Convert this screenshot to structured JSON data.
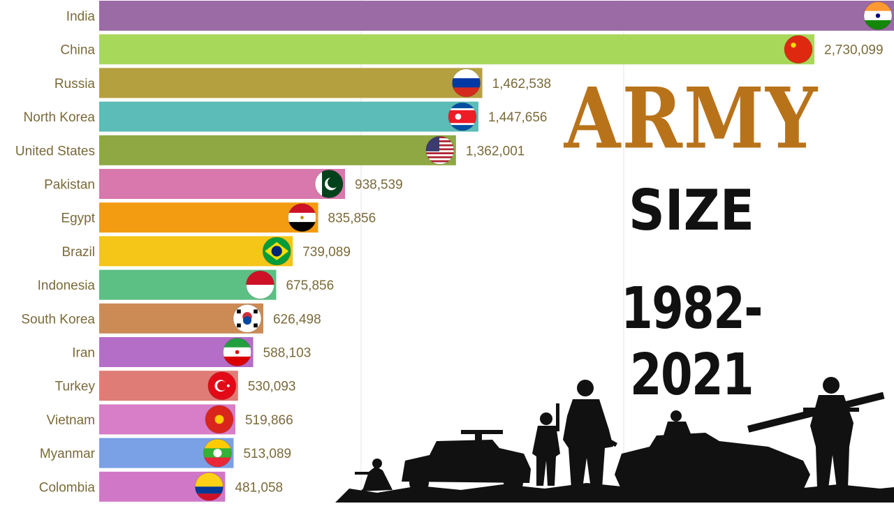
{
  "title": {
    "army": "ARMY",
    "size": "SIZE",
    "years": "1982-2021"
  },
  "chart_data": {
    "type": "bar",
    "orientation": "horizontal",
    "categories": [
      "India",
      "China",
      "Russia",
      "North Korea",
      "United States",
      "Pakistan",
      "Egypt",
      "Brazil",
      "Indonesia",
      "South Korea",
      "Iran",
      "Turkey",
      "Vietnam",
      "Myanmar",
      "Colombia"
    ],
    "values": [
      null,
      2730099,
      1462538,
      1447656,
      1362001,
      938539,
      835856,
      739089,
      675856,
      626498,
      588103,
      530093,
      519866,
      513089,
      481058
    ],
    "value_labels": [
      "",
      "2,730,099",
      "1,462,538",
      "1,447,656",
      "1,362,001",
      "938,539",
      "835,856",
      "739,089",
      "675,856",
      "626,498",
      "588,103",
      "530,093",
      "519,866",
      "513,089",
      "481,058"
    ],
    "colors": [
      "#9b6ba6",
      "#a8d85a",
      "#b5a03f",
      "#5cbcb7",
      "#8fa843",
      "#d878ad",
      "#f39c12",
      "#f5c518",
      "#5cbf83",
      "#cc8b55",
      "#b56ec8",
      "#e07c76",
      "#d87dc8",
      "#7aa0e6",
      "#d177c8"
    ],
    "flag_icons": [
      "india-flag-icon",
      "china-flag-icon",
      "russia-flag-icon",
      "north-korea-flag-icon",
      "united-states-flag-icon",
      "pakistan-flag-icon",
      "egypt-flag-icon",
      "brazil-flag-icon",
      "indonesia-flag-icon",
      "south-korea-flag-icon",
      "iran-flag-icon",
      "turkey-flag-icon",
      "vietnam-flag-icon",
      "myanmar-flag-icon",
      "colombia-flag-icon"
    ],
    "label_color": "#7a6a3a",
    "grid": true
  }
}
